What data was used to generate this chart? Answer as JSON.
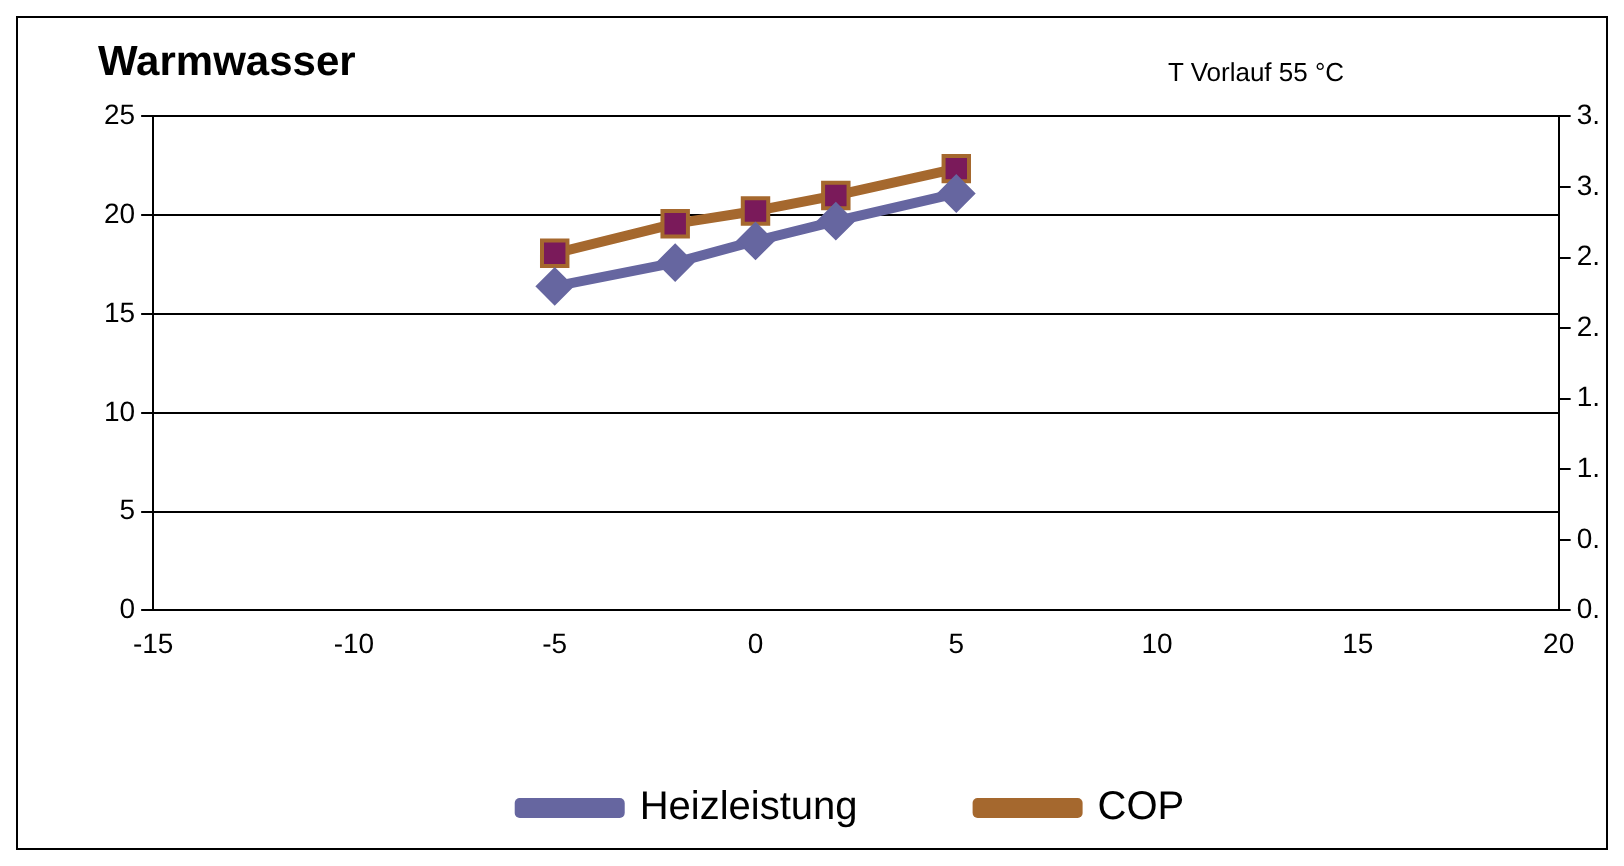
{
  "chart_data": {
    "type": "line",
    "title": "Warmwasser",
    "annotations": [
      "T Vorlauf 55 °C"
    ],
    "x": [
      -5,
      -2,
      0,
      2,
      5
    ],
    "series": [
      {
        "name": "Heizleistung",
        "color": "#6666a0",
        "values": [
          16.4,
          17.6,
          18.7,
          19.7,
          21.1
        ],
        "marker": "diamond"
      },
      {
        "name": "COP",
        "color": "#a5682e",
        "values": [
          2.53,
          2.74,
          2.83,
          2.94,
          3.13
        ],
        "axis": "y2",
        "marker": "square"
      }
    ],
    "xlim": [
      -15,
      20
    ],
    "xticks": [
      -15,
      -10,
      -5,
      0,
      5,
      10,
      15,
      20
    ],
    "ylim": [
      0,
      25
    ],
    "yticks": [
      0,
      5,
      10,
      15,
      20,
      25
    ],
    "y2lim": [
      0,
      3.5
    ],
    "y2ticks": [
      {
        "value": 0,
        "label": "0."
      },
      {
        "value": 0.5,
        "label": "0."
      },
      {
        "value": 1,
        "label": "1."
      },
      {
        "value": 1.5,
        "label": "1."
      },
      {
        "value": 2,
        "label": "2."
      },
      {
        "value": 2.5,
        "label": "2."
      },
      {
        "value": 3,
        "label": "3."
      },
      {
        "value": 3.5,
        "label": "3."
      }
    ],
    "grid": "y",
    "legend": "bottom",
    "line_style": "solid"
  }
}
